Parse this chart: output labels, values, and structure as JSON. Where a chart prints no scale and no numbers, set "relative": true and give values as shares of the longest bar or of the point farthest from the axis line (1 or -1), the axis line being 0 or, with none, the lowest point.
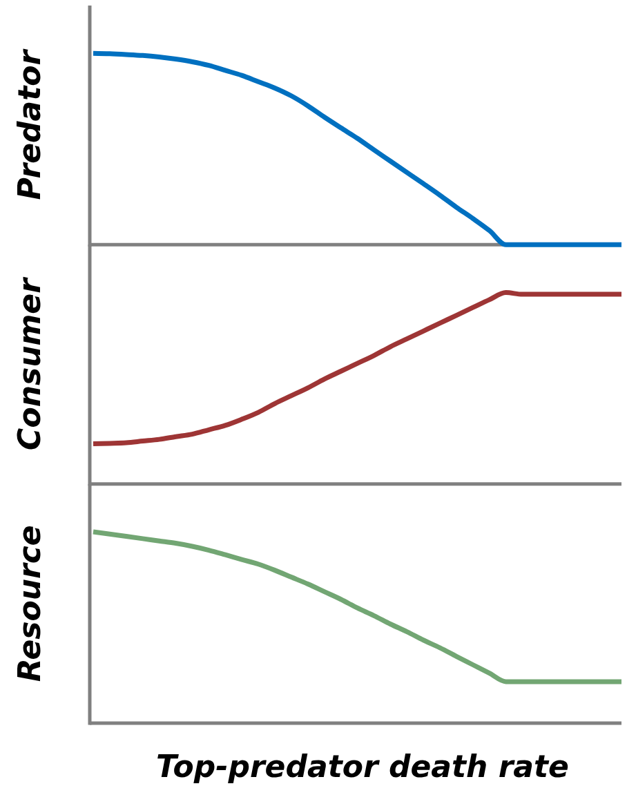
{
  "chart_data": [
    {
      "type": "line",
      "relative": true,
      "ylabel": "Predator",
      "categories": [
        null,
        null,
        null,
        null,
        null,
        null,
        null,
        null,
        null,
        null,
        null,
        null,
        null,
        null,
        null,
        null,
        null,
        null,
        null,
        null,
        null,
        null,
        null,
        null,
        null,
        null,
        null,
        null,
        null,
        null,
        null,
        null,
        null
      ],
      "series": [
        {
          "color": "#0070c0",
          "values": [
            1,
            0.998,
            0.994,
            0.989,
            0.981,
            0.97,
            0.956,
            0.937,
            0.911,
            0.885,
            0.852,
            0.819,
            0.778,
            0.726,
            0.667,
            0.611,
            0.556,
            0.496,
            0.437,
            0.378,
            0.319,
            0.259,
            0.196,
            0.137,
            0.074,
            0,
            0,
            0,
            0,
            0,
            0,
            0,
            0
          ]
        }
      ]
    },
    {
      "type": "line",
      "relative": true,
      "ylabel": "Consumer",
      "categories": [
        null,
        null,
        null,
        null,
        null,
        null,
        null,
        null,
        null,
        null,
        null,
        null,
        null,
        null,
        null,
        null,
        null,
        null,
        null,
        null,
        null,
        null,
        null,
        null,
        null,
        null,
        null,
        null,
        null,
        null,
        null,
        null,
        null
      ],
      "series": [
        {
          "color": "#9e3535",
          "values": [
            0.21,
            0.212,
            0.215,
            0.224,
            0.233,
            0.247,
            0.26,
            0.283,
            0.306,
            0.338,
            0.374,
            0.42,
            0.461,
            0.502,
            0.548,
            0.589,
            0.63,
            0.671,
            0.717,
            0.758,
            0.799,
            0.84,
            0.881,
            0.922,
            0.963,
            1,
            0.991,
            0.991,
            0.991,
            0.991,
            0.991,
            0.991,
            0.991
          ]
        }
      ]
    },
    {
      "type": "line",
      "relative": true,
      "ylabel": "Resource",
      "xlabel": "Top-predator death rate",
      "categories": [
        null,
        null,
        null,
        null,
        null,
        null,
        null,
        null,
        null,
        null,
        null,
        null,
        null,
        null,
        null,
        null,
        null,
        null,
        null,
        null,
        null,
        null,
        null,
        null,
        null,
        null,
        null,
        null,
        null,
        null,
        null,
        null,
        null
      ],
      "series": [
        {
          "color": "#72a673",
          "values": [
            1,
            0.988,
            0.976,
            0.964,
            0.952,
            0.94,
            0.924,
            0.904,
            0.88,
            0.855,
            0.831,
            0.799,
            0.763,
            0.727,
            0.687,
            0.647,
            0.602,
            0.562,
            0.518,
            0.478,
            0.434,
            0.394,
            0.349,
            0.305,
            0.261,
            0.217,
            0.217,
            0.217,
            0.217,
            0.217,
            0.217,
            0.217,
            0.217
          ]
        }
      ]
    }
  ]
}
